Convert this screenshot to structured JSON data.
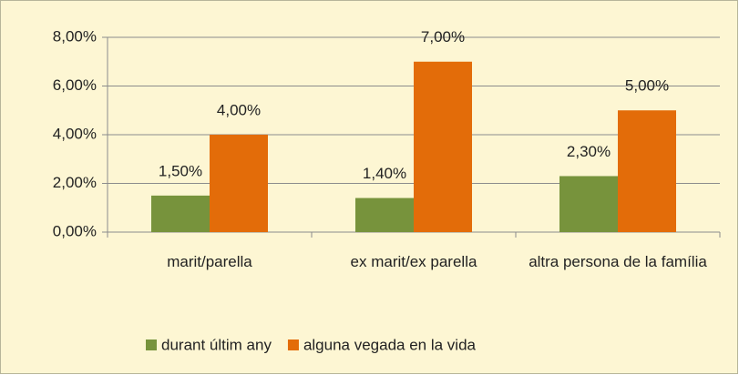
{
  "chart_data": {
    "type": "bar",
    "categories": [
      "marit/parella",
      "ex marit/ex parella",
      "altra persona de la família"
    ],
    "series": [
      {
        "name": "durant últim any",
        "color": "#77933c",
        "values": [
          1.5,
          1.4,
          2.3
        ],
        "value_labels": [
          "1,50%",
          "1,40%",
          "2,30%"
        ]
      },
      {
        "name": "alguna vegada en la vida",
        "color": "#e36c09",
        "values": [
          4,
          7,
          5
        ],
        "value_labels": [
          "4,00%",
          "7,00%",
          "5,00%"
        ]
      }
    ],
    "ylim": [
      0,
      8
    ],
    "yticks": [
      {
        "value": 0,
        "label": "0,00%"
      },
      {
        "value": 2,
        "label": "2,00%"
      },
      {
        "value": 4,
        "label": "4,00%"
      },
      {
        "value": 6,
        "label": "6,00%"
      },
      {
        "value": 8,
        "label": "8,00%"
      }
    ],
    "grid": true,
    "legend": "bottom"
  }
}
